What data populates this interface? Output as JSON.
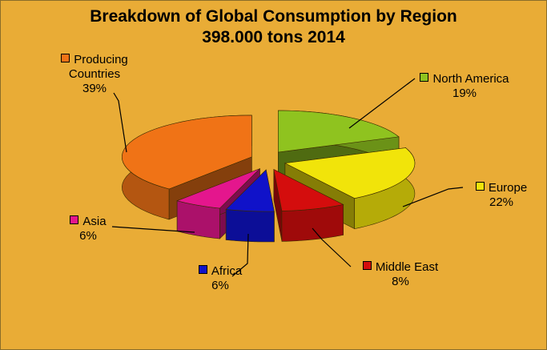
{
  "chart_data": {
    "type": "pie",
    "title": "Breakdown of Global Consumption by Region",
    "subtitle": "398.000 tons 2014",
    "categories": [
      "North America",
      "Europe",
      "Middle East",
      "Africa",
      "Asia",
      "Producing Countries"
    ],
    "values": [
      19,
      22,
      8,
      6,
      6,
      39
    ],
    "value_labels": [
      "19%",
      "22%",
      "8%",
      "6%",
      "6%",
      "39%"
    ],
    "colors": [
      "#8fc31f",
      "#f1e40a",
      "#d40d0d",
      "#1012c9",
      "#e4168d",
      "#f07316"
    ],
    "legend": "labels beside slices",
    "exploded": true,
    "three_d": true
  },
  "labels": {
    "producing_line1": "Producing",
    "producing_line2": "Countries"
  }
}
